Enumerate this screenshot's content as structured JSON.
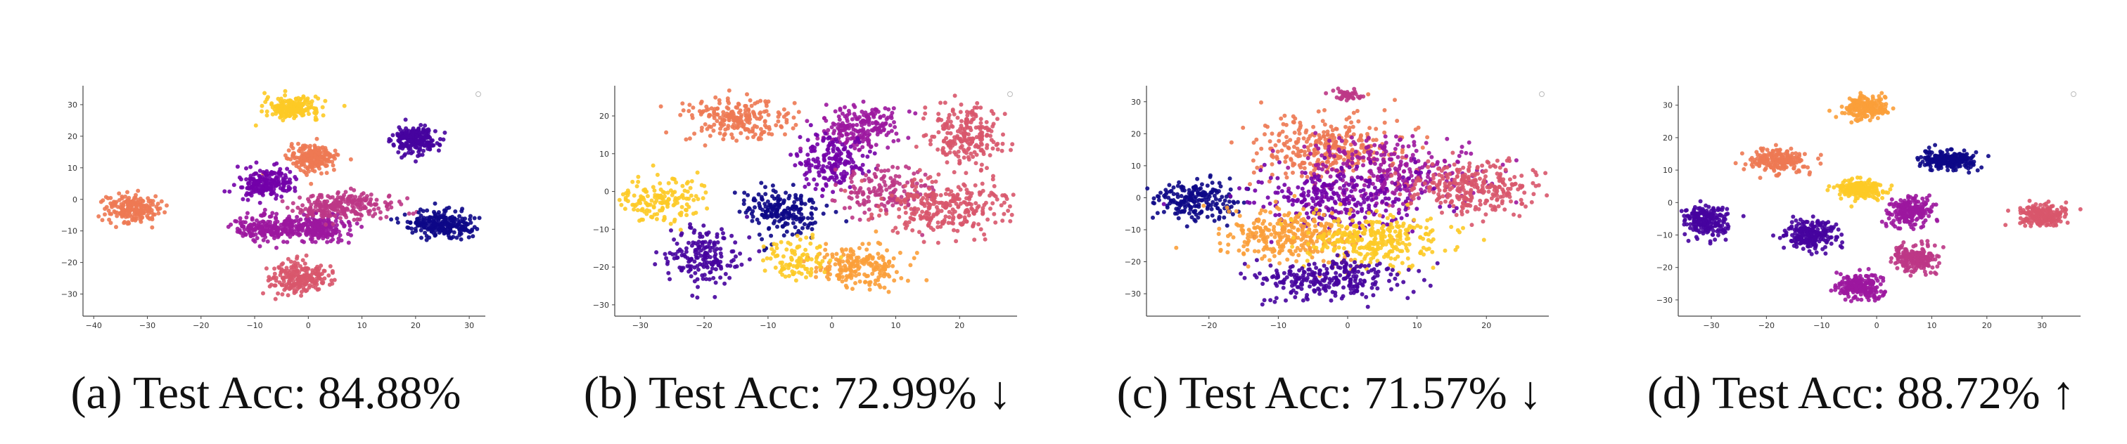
{
  "colors": [
    "#0d0887",
    "#46039f",
    "#7201a8",
    "#9c179e",
    "#bd3786",
    "#d8576b",
    "#ed7953",
    "#fb9f3a",
    "#fdca26"
  ],
  "chart_data": [
    {
      "type": "scatter",
      "caption": "(a) Test Acc: 84.88%",
      "xticks": [
        -40,
        -30,
        -20,
        -10,
        0,
        10,
        20,
        30
      ],
      "yticks": [
        -30,
        -20,
        -10,
        0,
        10,
        20,
        30
      ],
      "xlim": [
        -42,
        33
      ],
      "ylim": [
        -37,
        36
      ],
      "grid": false,
      "clusters": [
        {
          "color": 8,
          "x": -3,
          "y": 29,
          "sx": 2.5,
          "sy": 1.6,
          "n": 220
        },
        {
          "color": 6,
          "x": 1,
          "y": 13,
          "sx": 2.2,
          "sy": 2.0,
          "n": 220
        },
        {
          "color": 1,
          "x": 20,
          "y": 19,
          "sx": 2.0,
          "sy": 2.2,
          "n": 220
        },
        {
          "color": 6,
          "x": -33,
          "y": -3,
          "sx": 2.5,
          "sy": 2.2,
          "n": 200
        },
        {
          "color": 2,
          "x": -8,
          "y": 5,
          "sx": 2.6,
          "sy": 2.2,
          "n": 200
        },
        {
          "color": 3,
          "x": -7,
          "y": -9,
          "sx": 3.2,
          "sy": 2.0,
          "n": 220
        },
        {
          "color": 3,
          "x": 2,
          "y": -9,
          "sx": 3.0,
          "sy": 2.2,
          "n": 200
        },
        {
          "color": 4,
          "x": 7,
          "y": -2,
          "sx": 4.5,
          "sy": 2.0,
          "n": 240
        },
        {
          "color": 0,
          "x": 25,
          "y": -8,
          "sx": 3.0,
          "sy": 2.0,
          "n": 240
        },
        {
          "color": 5,
          "x": -2,
          "y": -25,
          "sx": 2.8,
          "sy": 2.5,
          "n": 220
        }
      ]
    },
    {
      "type": "scatter",
      "caption": "(b) Test Acc: 72.99% ↓",
      "xticks": [
        -30,
        -20,
        -10,
        0,
        10,
        20
      ],
      "yticks": [
        -30,
        -20,
        -10,
        0,
        10,
        20
      ],
      "xlim": [
        -34,
        29
      ],
      "ylim": [
        -33,
        28
      ],
      "grid": false,
      "clusters": [
        {
          "color": 6,
          "x": -15,
          "y": 19,
          "sx": 4.0,
          "sy": 3.0,
          "n": 220
        },
        {
          "color": 3,
          "x": 4,
          "y": 17,
          "sx": 3.0,
          "sy": 3.0,
          "n": 200
        },
        {
          "color": 5,
          "x": 21,
          "y": 14,
          "sx": 3.0,
          "sy": 4.0,
          "n": 220
        },
        {
          "color": 8,
          "x": -27,
          "y": -2,
          "sx": 3.0,
          "sy": 3.0,
          "n": 160
        },
        {
          "color": 0,
          "x": -8,
          "y": -5,
          "sx": 3.0,
          "sy": 3.0,
          "n": 200
        },
        {
          "color": 2,
          "x": 0,
          "y": 8,
          "sx": 3.0,
          "sy": 4.0,
          "n": 180
        },
        {
          "color": 4,
          "x": 8,
          "y": 0,
          "sx": 3.5,
          "sy": 3.0,
          "n": 160
        },
        {
          "color": 5,
          "x": 18,
          "y": -4,
          "sx": 5.0,
          "sy": 3.5,
          "n": 280
        },
        {
          "color": 1,
          "x": -20,
          "y": -17,
          "sx": 3.0,
          "sy": 3.5,
          "n": 180
        },
        {
          "color": 7,
          "x": 4,
          "y": -20,
          "sx": 3.5,
          "sy": 3.0,
          "n": 200
        },
        {
          "color": 8,
          "x": -5,
          "y": -18,
          "sx": 2.5,
          "sy": 3.0,
          "n": 100
        }
      ]
    },
    {
      "type": "scatter",
      "caption": "(c) Test Acc: 71.57% ↓",
      "xticks": [
        -20,
        -10,
        0,
        10,
        20
      ],
      "yticks": [
        -30,
        -20,
        -10,
        0,
        10,
        20,
        30
      ],
      "xlim": [
        -29,
        29
      ],
      "ylim": [
        -37,
        35
      ],
      "grid": false,
      "clusters": [
        {
          "color": 0,
          "x": -22,
          "y": -1,
          "sx": 3.0,
          "sy": 3.0,
          "n": 200
        },
        {
          "color": 6,
          "x": -3,
          "y": 16,
          "sx": 5.0,
          "sy": 5.0,
          "n": 320
        },
        {
          "color": 3,
          "x": 6,
          "y": 8,
          "sx": 6.0,
          "sy": 5.0,
          "n": 300
        },
        {
          "color": 5,
          "x": 18,
          "y": 3,
          "sx": 5.0,
          "sy": 4.0,
          "n": 300
        },
        {
          "color": 2,
          "x": -1,
          "y": 0,
          "sx": 6.0,
          "sy": 5.0,
          "n": 300
        },
        {
          "color": 7,
          "x": -8,
          "y": -12,
          "sx": 5.0,
          "sy": 4.0,
          "n": 300
        },
        {
          "color": 8,
          "x": 3,
          "y": -13,
          "sx": 5.0,
          "sy": 4.0,
          "n": 300
        },
        {
          "color": 1,
          "x": -3,
          "y": -25,
          "sx": 5.0,
          "sy": 3.0,
          "n": 260
        },
        {
          "color": 4,
          "x": 0,
          "y": 32,
          "sx": 1.0,
          "sy": 0.8,
          "n": 40
        }
      ]
    },
    {
      "type": "scatter",
      "caption": "(d) Test Acc: 88.72% ↑",
      "xticks": [
        -30,
        -20,
        -10,
        0,
        10,
        20,
        30
      ],
      "yticks": [
        -30,
        -20,
        -10,
        0,
        10,
        20,
        30
      ],
      "xlim": [
        -36,
        37
      ],
      "ylim": [
        -35,
        36
      ],
      "grid": false,
      "clusters": [
        {
          "color": 7,
          "x": -2,
          "y": 29,
          "sx": 2.0,
          "sy": 1.8,
          "n": 200
        },
        {
          "color": 6,
          "x": -18,
          "y": 13,
          "sx": 2.8,
          "sy": 1.8,
          "n": 200
        },
        {
          "color": 0,
          "x": 13,
          "y": 13,
          "sx": 2.4,
          "sy": 1.5,
          "n": 220
        },
        {
          "color": 8,
          "x": -3,
          "y": 4,
          "sx": 2.2,
          "sy": 1.6,
          "n": 200
        },
        {
          "color": 1,
          "x": -31,
          "y": -6,
          "sx": 2.0,
          "sy": 2.4,
          "n": 200
        },
        {
          "color": 1,
          "x": -12,
          "y": -10,
          "sx": 2.2,
          "sy": 2.2,
          "n": 220
        },
        {
          "color": 3,
          "x": 6,
          "y": -3,
          "sx": 2.0,
          "sy": 2.2,
          "n": 200
        },
        {
          "color": 5,
          "x": 30,
          "y": -4,
          "sx": 2.2,
          "sy": 1.8,
          "n": 200
        },
        {
          "color": 4,
          "x": 7,
          "y": -17,
          "sx": 2.0,
          "sy": 2.2,
          "n": 200
        },
        {
          "color": 3,
          "x": -3,
          "y": -26,
          "sx": 2.0,
          "sy": 2.0,
          "n": 200
        }
      ]
    }
  ]
}
